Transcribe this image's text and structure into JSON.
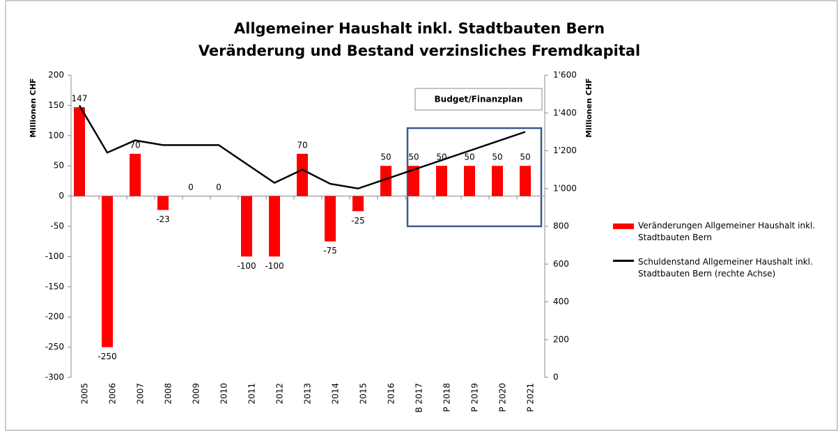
{
  "chart_data": {
    "type": "bar_line",
    "title": "Allgemeiner Haushalt inkl. Stadtbauten Bern",
    "subtitle": "Veränderung und Bestand verzinsliches Fremdkapital",
    "y_label": "Millionen CHF",
    "y2_label": "Millionen CHF",
    "annotation": "Budget/Finanzplan",
    "categories": [
      "2005",
      "2006",
      "2007",
      "2008",
      "2009",
      "2010",
      "2011",
      "2012",
      "2013",
      "2014",
      "2015",
      "2016",
      "B 2017",
      "P 2018",
      "P 2019",
      "P 2020",
      "P 2021"
    ],
    "series": [
      {
        "name": "Veränderungen Allgemeiner Haushalt inkl. Stadtbauten Bern",
        "type": "bar",
        "color": "#ff0000",
        "values": [
          147,
          -250,
          70,
          -23,
          0,
          0,
          -100,
          -100,
          70,
          -75,
          -25,
          50,
          50,
          50,
          50,
          50,
          50
        ]
      },
      {
        "name": "Schuldenstand Allgemeiner Haushalt inkl. Stadtbauten Bern (rechte Achse)",
        "type": "line",
        "color": "#000000",
        "axis": "y2",
        "values": [
          1440,
          1190,
          1255,
          1230,
          1230,
          1230,
          1130,
          1030,
          1100,
          1025,
          1000,
          1050,
          1100,
          1150,
          1200,
          1250,
          1300
        ]
      }
    ],
    "ylim": [
      -300,
      200
    ],
    "yticks": [
      -300,
      -250,
      -200,
      -150,
      -100,
      -50,
      0,
      50,
      100,
      150,
      200
    ],
    "y2lim": [
      0,
      1600
    ],
    "y2ticks": [
      0,
      200,
      400,
      600,
      800,
      {
        "value": 1000,
        "label": "1'000"
      },
      {
        "value": 1200,
        "label": "1'200"
      },
      {
        "value": 1400,
        "label": "1'400"
      },
      {
        "value": 1600,
        "label": "1'600"
      }
    ],
    "grid": false,
    "legend": "right"
  }
}
